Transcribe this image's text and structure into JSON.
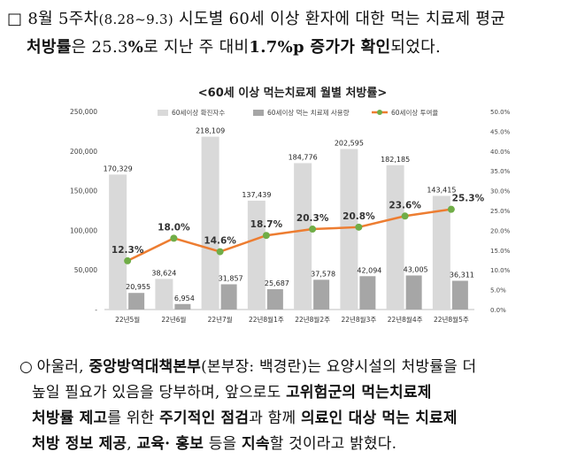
{
  "para1": {
    "bullet": "□",
    "text_a": "8월 5주차",
    "text_b": "(8.28~9.3)",
    "text_c": " 시도별 60세 이상 환자에 대한 먹는 치료제 평균",
    "line2_a": "처방률",
    "line2_b": "은 25.3",
    "line2_c": "%",
    "line2_d": "로 지난 주 대비",
    "line2_e": "1.7%p",
    "line2_f": " 증가가 확인",
    "line2_g": "되었다."
  },
  "chart_title": "<60세 이상 먹는치료제 월별 처방률>",
  "chart_data": {
    "type": "bar",
    "categories": [
      "22년5월",
      "22년6월",
      "22년7월",
      "22년8월1주",
      "22년8월2주",
      "22년8월3주",
      "22년8월4주",
      "22년8월5주"
    ],
    "series": [
      {
        "name": "60세이상 확진자수",
        "values": [
          170329,
          38624,
          218109,
          137439,
          184776,
          202595,
          182185,
          143415
        ],
        "labels": [
          "170,329",
          "38,624",
          "218,109",
          "137,439",
          "184,776",
          "202,595",
          "182,185",
          "143,415"
        ],
        "color": "#d9d9d9"
      },
      {
        "name": "60세이상 먹는 치료제 사용량",
        "values": [
          20955,
          6954,
          31857,
          25687,
          37578,
          42094,
          43005,
          36311
        ],
        "labels": [
          "20,955",
          "6,954",
          "31,857",
          "25,687",
          "37,578",
          "42,094",
          "43,005",
          "36,311"
        ],
        "color": "#a6a6a6"
      },
      {
        "name": "60세이상 투여율",
        "values": [
          12.3,
          18.0,
          14.6,
          18.7,
          20.3,
          20.8,
          23.6,
          25.3
        ],
        "labels": [
          "12.3%",
          "18.0%",
          "14.6%",
          "18.7%",
          "20.3%",
          "20.8%",
          "23.6%",
          "25.3%"
        ],
        "color": "#ed7d31",
        "marker_color": "#70ad47",
        "axis": "right"
      }
    ],
    "y_left_ticks": [
      "-",
      "50,000",
      "100,000",
      "150,000",
      "200,000",
      "250,000"
    ],
    "y_left_lim": [
      0,
      250000
    ],
    "y_right_ticks": [
      "0.0%",
      "5.0%",
      "10.0%",
      "15.0%",
      "20.0%",
      "25.0%",
      "30.0%",
      "35.0%",
      "40.0%",
      "45.0%",
      "50.0%"
    ],
    "y_right_lim": [
      0,
      50
    ],
    "legend_position": "top"
  },
  "para2": {
    "bullet": "○",
    "l1_a": "아울러, ",
    "l1_b": "중앙방역대책본부",
    "l1_c": "(본부장: 백경란)는 요양시설의 처방률을 더",
    "l2_a": "높일 필요가 있음을 당부하며, 앞으로도 ",
    "l2_b": "고위험군의 먹는치료제",
    "l3_a": "처방률 제고",
    "l3_b": "를 위한 ",
    "l3_c": "주기적인 점검",
    "l3_d": "과 함께 ",
    "l3_e": "의료인 대상 먹는 치료제",
    "l4_a": "처방 정보 제공",
    "l4_b": ", ",
    "l4_c": "교육· 홍보",
    "l4_d": " 등을 ",
    "l4_e": "지속",
    "l4_f": "할 것이라고 밝혔다."
  }
}
